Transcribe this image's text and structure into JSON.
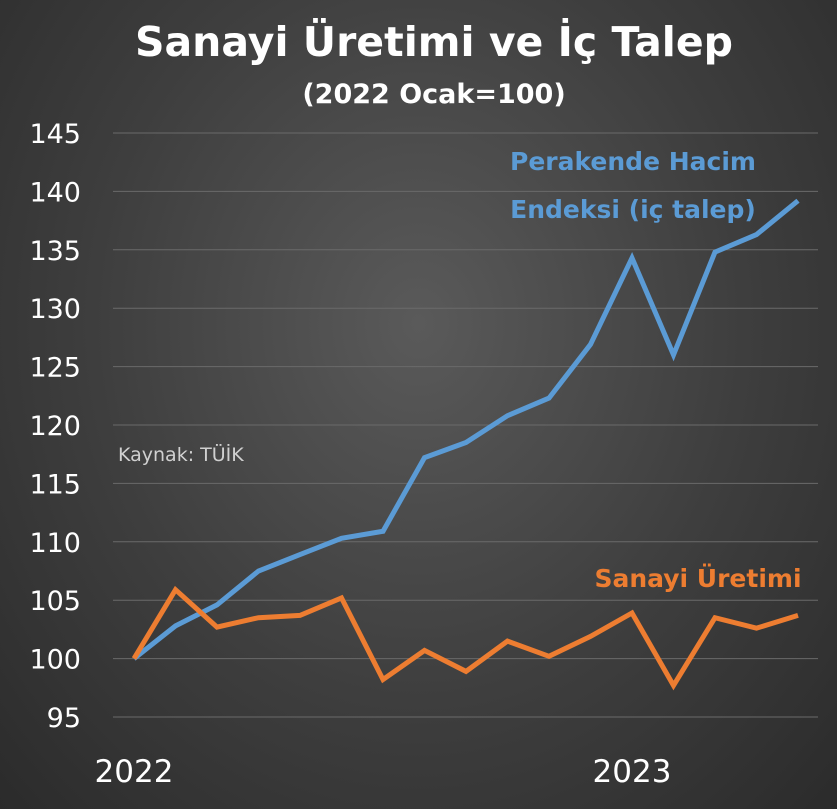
{
  "chart_data": {
    "type": "line",
    "title": "Sanayi Üretimi ve İç Talep",
    "subtitle": "(2022 Ocak=100)",
    "source": "Kaynak: TÜİK",
    "x_tick_labels": [
      "2022",
      "2023"
    ],
    "ylim": [
      95,
      145
    ],
    "y_ticks": [
      95,
      100,
      105,
      110,
      115,
      120,
      125,
      130,
      135,
      140,
      145
    ],
    "grid": true,
    "series": [
      {
        "name_lines": [
          "Perakende Hacim",
          "Endeksi (iç talep)"
        ],
        "color": "#5b9bd5",
        "values": [
          100,
          102.8,
          104.6,
          107.5,
          108.9,
          110.3,
          110.9,
          117.2,
          118.5,
          120.8,
          122.3,
          126.9,
          134.3,
          126.0,
          134.8,
          136.3,
          139.2
        ]
      },
      {
        "name": "Sanayi Üretimi",
        "color": "#ed7d31",
        "values": [
          100,
          105.9,
          102.7,
          103.5,
          103.7,
          105.2,
          98.2,
          100.7,
          98.9,
          101.5,
          100.2,
          101.9,
          103.9,
          97.7,
          103.5,
          102.6,
          103.7
        ]
      }
    ]
  }
}
